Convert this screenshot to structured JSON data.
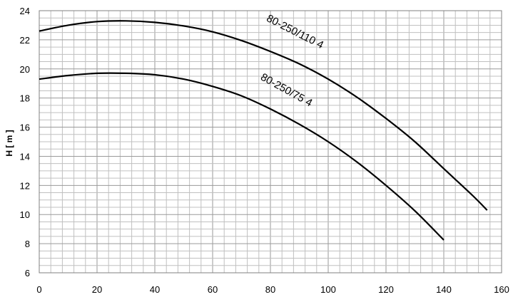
{
  "chart_data": {
    "type": "line",
    "ylabel": "H [ m ]",
    "xlabel": "",
    "xlim": [
      0,
      160
    ],
    "ylim": [
      6,
      24
    ],
    "x_ticks": [
      0,
      20,
      40,
      60,
      80,
      100,
      120,
      140,
      160
    ],
    "y_ticks": [
      6,
      8,
      10,
      12,
      14,
      16,
      18,
      20,
      22,
      24
    ],
    "grid": true,
    "series": [
      {
        "name": "80-250/110 4",
        "x": [
          0,
          10,
          20,
          30,
          40,
          50,
          60,
          70,
          80,
          90,
          100,
          110,
          120,
          130,
          140,
          150,
          155
        ],
        "y": [
          22.6,
          23.0,
          23.25,
          23.3,
          23.2,
          22.95,
          22.55,
          21.95,
          21.2,
          20.35,
          19.3,
          18.05,
          16.6,
          15.0,
          13.15,
          11.3,
          10.3
        ]
      },
      {
        "name": "80-250/75 4",
        "x": [
          0,
          10,
          20,
          30,
          40,
          50,
          60,
          70,
          80,
          90,
          100,
          110,
          120,
          130,
          140
        ],
        "y": [
          19.3,
          19.55,
          19.7,
          19.7,
          19.6,
          19.3,
          18.8,
          18.15,
          17.25,
          16.2,
          15.0,
          13.6,
          12.0,
          10.25,
          8.25
        ]
      }
    ]
  }
}
